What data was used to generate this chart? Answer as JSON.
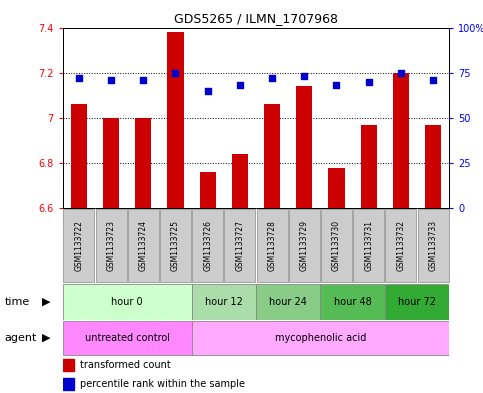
{
  "title": "GDS5265 / ILMN_1707968",
  "samples": [
    "GSM1133722",
    "GSM1133723",
    "GSM1133724",
    "GSM1133725",
    "GSM1133726",
    "GSM1133727",
    "GSM1133728",
    "GSM1133729",
    "GSM1133730",
    "GSM1133731",
    "GSM1133732",
    "GSM1133733"
  ],
  "transformed_counts": [
    7.06,
    7.0,
    7.0,
    7.38,
    6.76,
    6.84,
    7.06,
    7.14,
    6.78,
    6.97,
    7.2,
    6.97
  ],
  "percentile_ranks": [
    72,
    71,
    71,
    75,
    65,
    68,
    72,
    73,
    68,
    70,
    75,
    71
  ],
  "ylim_left": [
    6.6,
    7.4
  ],
  "ylim_right": [
    0,
    100
  ],
  "yticks_left": [
    6.6,
    6.8,
    7.0,
    7.2,
    7.4
  ],
  "yticks_right": [
    0,
    25,
    50,
    75,
    100
  ],
  "bar_color": "#cc0000",
  "dot_color": "#0000cc",
  "bar_bottom": 6.6,
  "time_groups": [
    {
      "label": "hour 0",
      "start": 0,
      "end": 4,
      "color": "#ccffcc"
    },
    {
      "label": "hour 12",
      "start": 4,
      "end": 6,
      "color": "#aaddaa"
    },
    {
      "label": "hour 24",
      "start": 6,
      "end": 8,
      "color": "#88cc88"
    },
    {
      "label": "hour 48",
      "start": 8,
      "end": 10,
      "color": "#55bb55"
    },
    {
      "label": "hour 72",
      "start": 10,
      "end": 12,
      "color": "#33aa33"
    }
  ],
  "agent_groups": [
    {
      "label": "untreated control",
      "start": 0,
      "end": 4,
      "color": "#ff88ff"
    },
    {
      "label": "mycophenolic acid",
      "start": 4,
      "end": 12,
      "color": "#ffaaff"
    }
  ],
  "legend_tc_color": "#cc0000",
  "legend_pr_color": "#0000cc",
  "sample_bg": "#cccccc",
  "border_color": "#888888"
}
